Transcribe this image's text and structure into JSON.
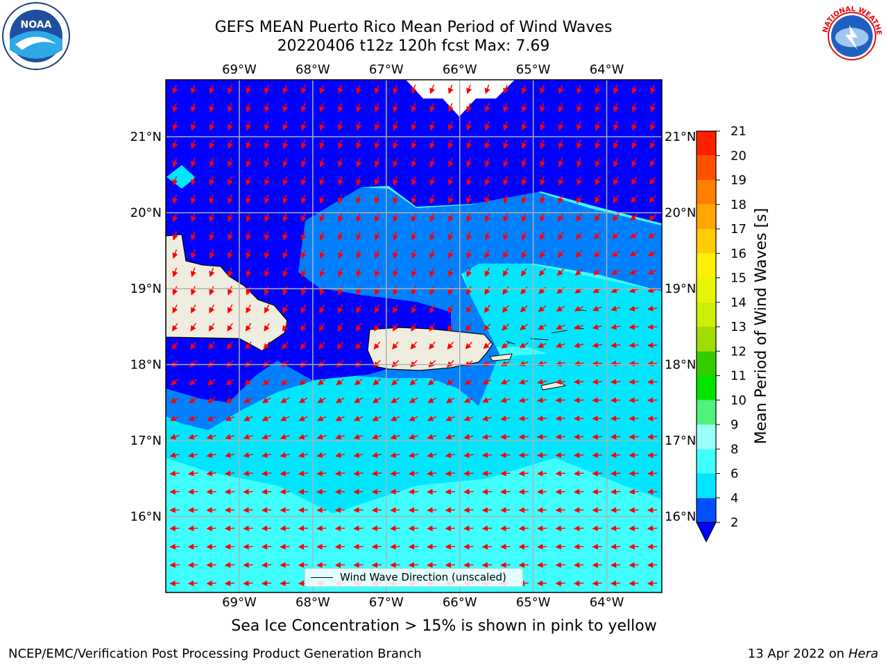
{
  "header": {
    "title_line1": "GEFS MEAN Puerto Rico Mean Period of Wind Waves",
    "title_line2": "20220406 t12z 120h fcst   Max: 7.69"
  },
  "logos": {
    "noaa_text": "NOAA",
    "nws_text": "NATIONAL WEATHER SERVICE"
  },
  "map": {
    "lon_labels": [
      "69°W",
      "68°W",
      "67°W",
      "66°W",
      "65°W",
      "64°W"
    ],
    "lat_labels": [
      "21°N",
      "20°N",
      "19°N",
      "18°N",
      "17°N",
      "16°N"
    ],
    "lon_values": [
      -69,
      -68,
      -67,
      -66,
      -65,
      -64
    ],
    "lat_values": [
      21,
      20,
      19,
      18,
      17,
      16
    ],
    "extent": {
      "lon": [
        -70,
        -63.25
      ],
      "lat": [
        15,
        21.75
      ]
    },
    "legend_label": "Wind Wave Direction (unscaled)",
    "arrow_color": "#ff0000",
    "land_color": "#efeddf",
    "grid": true
  },
  "colorbar": {
    "label": "Mean Period of Wind Waves [s]",
    "ticks": [
      "2",
      "4",
      "6",
      "8",
      "9",
      "10",
      "11",
      "12",
      "13",
      "14",
      "15",
      "16",
      "17",
      "18",
      "19",
      "20",
      "21"
    ],
    "colors": [
      "#0050ff",
      "#00e6ff",
      "#40fdfe",
      "#9bfff8",
      "#4ff27a",
      "#00e400",
      "#33cc00",
      "#9fdc00",
      "#ccee00",
      "#e6f600",
      "#fff000",
      "#ffcc00",
      "#ffa500",
      "#ff8000",
      "#ff5000",
      "#ff2000",
      "#ff0000"
    ],
    "under_color": "#0000ff"
  },
  "chart_data": {
    "type": "heatmap",
    "title": "GEFS MEAN Puerto Rico Mean Period of Wind Waves",
    "variable": "Mean Period of Wind Waves [s]",
    "max": 7.69,
    "levels": [
      2,
      4,
      6,
      8,
      9,
      10,
      11,
      12,
      13,
      14,
      15,
      16,
      17,
      18,
      19,
      20,
      21
    ],
    "xlim": [
      -70,
      -63.25
    ],
    "ylim": [
      15,
      21.75
    ]
  },
  "footer": {
    "caption": "Sea Ice Concentration > 15% is shown in pink to yellow",
    "left": "NCEP/EMC/Verification Post Processing Product Generation Branch",
    "right_prefix": "13 Apr 2022 on ",
    "right_host": "Hera"
  }
}
